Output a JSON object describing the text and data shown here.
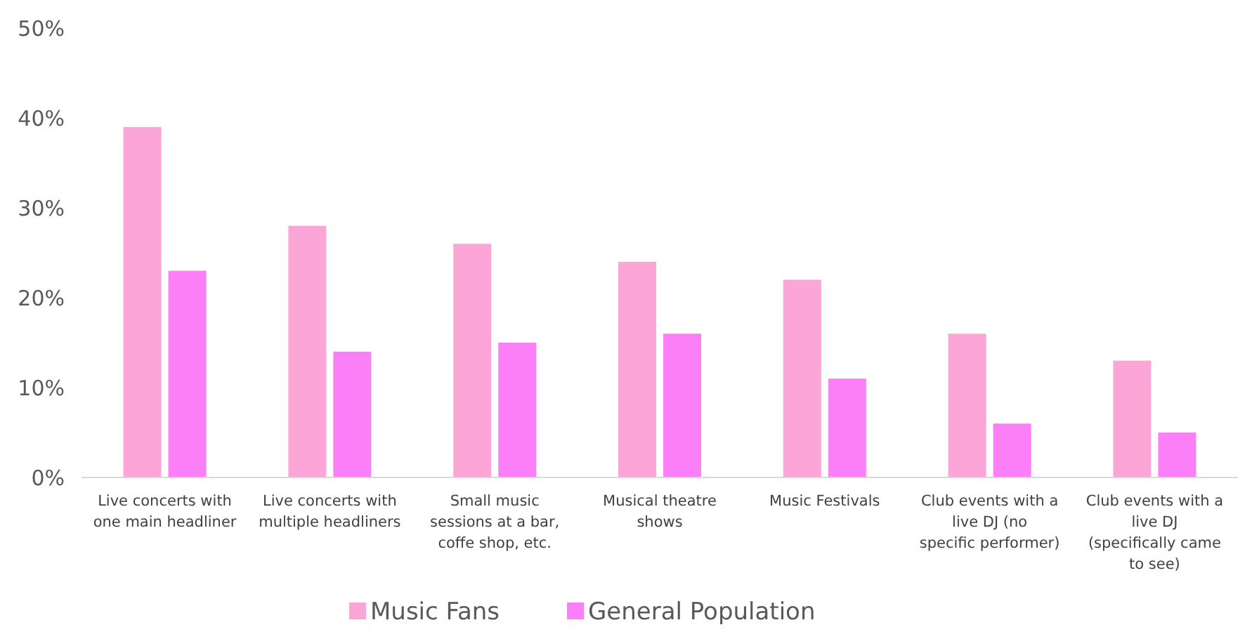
{
  "chart_data": {
    "type": "bar",
    "categories": [
      "Live concerts with one main headliner",
      "Live concerts with multiple headliners",
      "Small music sessions at a bar, coffe shop, etc.",
      "Musical theatre shows",
      "Music Festivals",
      "Club events with a live DJ (no specific performer)",
      "Club events with a live DJ (specifically came to see)"
    ],
    "series": [
      {
        "name": "Music Fans",
        "color": "#fba6d6",
        "values": [
          39,
          28,
          26,
          24,
          22,
          16,
          13
        ]
      },
      {
        "name": "General Population",
        "color": "#fb80f7",
        "values": [
          23,
          14,
          15,
          16,
          11,
          6,
          5
        ]
      }
    ],
    "ylim": [
      0,
      50
    ],
    "yticks": [
      {
        "value": 0,
        "label": "0%"
      },
      {
        "value": 10,
        "label": "10%"
      },
      {
        "value": 20,
        "label": "20%"
      },
      {
        "value": 30,
        "label": "30%"
      },
      {
        "value": 40,
        "label": "40%"
      },
      {
        "value": 50,
        "label": "50%"
      }
    ],
    "grid": false,
    "legend": "bottom"
  }
}
